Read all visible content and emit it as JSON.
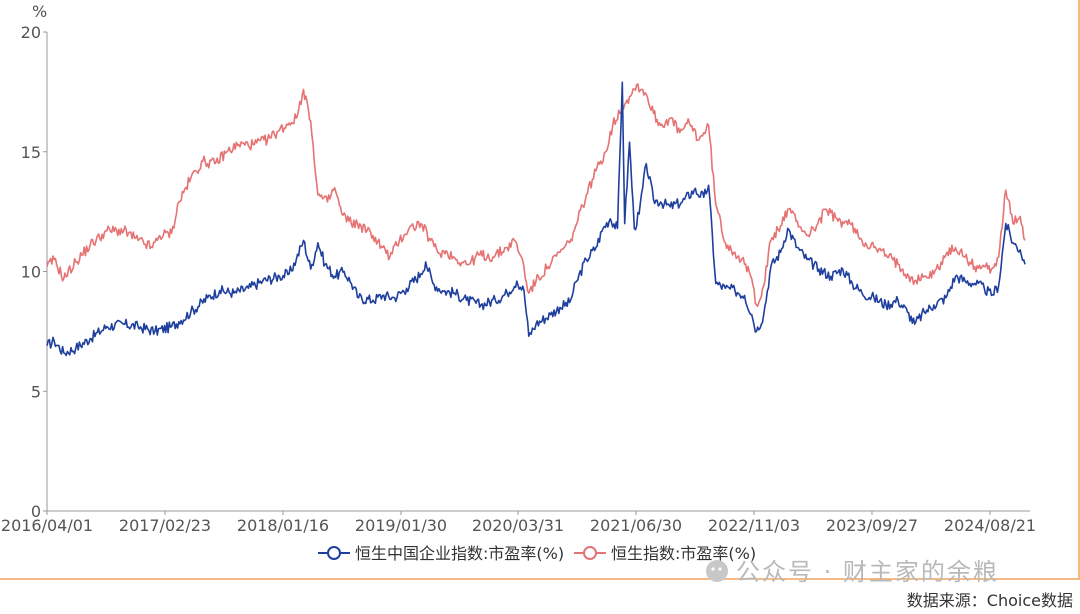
{
  "chart_data": {
    "type": "line",
    "y_unit": "%",
    "ylim": [
      0,
      20
    ],
    "y_ticks": [
      0,
      5,
      10,
      15,
      20
    ],
    "x_ticks": [
      "2016/04/01",
      "2017/02/23",
      "2018/01/16",
      "2019/01/30",
      "2020/03/31",
      "2021/06/30",
      "2022/11/03",
      "2023/09/27",
      "2024/08/21"
    ],
    "grid": false,
    "legend_position": "bottom",
    "series": [
      {
        "name": "恒生中国企业指数:市盈率(%)",
        "color": "#1f3f9e",
        "points": [
          [
            0,
            6.9
          ],
          [
            3,
            7.1
          ],
          [
            7,
            6.6
          ],
          [
            12,
            6.8
          ],
          [
            18,
            7.2
          ],
          [
            25,
            7.7
          ],
          [
            32,
            7.8
          ],
          [
            38,
            7.7
          ],
          [
            45,
            7.5
          ],
          [
            52,
            7.7
          ],
          [
            55,
            7.9
          ],
          [
            60,
            8.3
          ],
          [
            67,
            8.9
          ],
          [
            72,
            9.2
          ],
          [
            78,
            9.1
          ],
          [
            84,
            9.3
          ],
          [
            90,
            9.6
          ],
          [
            97,
            9.8
          ],
          [
            101,
            9.9
          ],
          [
            104,
            10.5
          ],
          [
            107,
            11.3
          ],
          [
            110,
            10.1
          ],
          [
            113,
            11.2
          ],
          [
            116,
            10.3
          ],
          [
            120,
            9.8
          ],
          [
            124,
            10.0
          ],
          [
            127,
            9.5
          ],
          [
            130,
            8.9
          ],
          [
            136,
            8.8
          ],
          [
            140,
            9.0
          ],
          [
            145,
            8.9
          ],
          [
            150,
            9.3
          ],
          [
            156,
            9.9
          ],
          [
            158,
            10.4
          ],
          [
            161,
            9.5
          ],
          [
            165,
            9.2
          ],
          [
            170,
            9.1
          ],
          [
            175,
            8.8
          ],
          [
            181,
            8.6
          ],
          [
            187,
            8.8
          ],
          [
            192,
            9.1
          ],
          [
            196,
            9.6
          ],
          [
            199,
            9.2
          ],
          [
            201,
            7.3
          ],
          [
            204,
            7.8
          ],
          [
            210,
            8.2
          ],
          [
            214,
            8.5
          ],
          [
            218,
            8.7
          ],
          [
            221,
            9.6
          ],
          [
            225,
            10.5
          ],
          [
            229,
            11.0
          ],
          [
            232,
            11.8
          ],
          [
            235,
            12.2
          ],
          [
            238,
            11.8
          ],
          [
            240,
            17.9
          ],
          [
            241,
            12.0
          ],
          [
            243,
            15.4
          ],
          [
            245,
            11.8
          ],
          [
            247,
            12.4
          ],
          [
            250,
            14.5
          ],
          [
            253,
            13.0
          ],
          [
            256,
            12.9
          ],
          [
            260,
            12.7
          ],
          [
            265,
            12.9
          ],
          [
            270,
            13.4
          ],
          [
            274,
            13.1
          ],
          [
            276,
            13.6
          ],
          [
            279,
            9.5
          ],
          [
            283,
            9.3
          ],
          [
            287,
            9.2
          ],
          [
            291,
            9.0
          ],
          [
            294,
            8.2
          ],
          [
            296,
            7.5
          ],
          [
            299,
            8.2
          ],
          [
            302,
            10.2
          ],
          [
            306,
            10.8
          ],
          [
            309,
            11.8
          ],
          [
            313,
            11.0
          ],
          [
            317,
            10.5
          ],
          [
            322,
            10.1
          ],
          [
            327,
            9.8
          ],
          [
            332,
            10.1
          ],
          [
            336,
            9.5
          ],
          [
            340,
            9.1
          ],
          [
            345,
            8.9
          ],
          [
            350,
            8.6
          ],
          [
            355,
            8.8
          ],
          [
            359,
            8.3
          ],
          [
            362,
            7.8
          ],
          [
            366,
            8.3
          ],
          [
            370,
            8.6
          ],
          [
            375,
            8.9
          ],
          [
            379,
            9.8
          ],
          [
            383,
            9.6
          ],
          [
            387,
            9.5
          ],
          [
            391,
            9.3
          ],
          [
            394,
            9.0
          ],
          [
            397,
            9.4
          ],
          [
            400,
            12.0
          ],
          [
            403,
            11.2
          ],
          [
            406,
            10.9
          ],
          [
            408,
            10.3
          ]
        ]
      },
      {
        "name": "恒生指数:市盈率(%)",
        "color": "#e57373",
        "points": [
          [
            0,
            10.2
          ],
          [
            3,
            10.5
          ],
          [
            7,
            9.7
          ],
          [
            12,
            10.4
          ],
          [
            18,
            11.1
          ],
          [
            25,
            11.7
          ],
          [
            32,
            11.7
          ],
          [
            38,
            11.3
          ],
          [
            44,
            11.0
          ],
          [
            47,
            11.5
          ],
          [
            52,
            11.6
          ],
          [
            55,
            12.9
          ],
          [
            60,
            13.9
          ],
          [
            65,
            14.6
          ],
          [
            70,
            14.5
          ],
          [
            75,
            15.0
          ],
          [
            80,
            15.3
          ],
          [
            86,
            15.3
          ],
          [
            92,
            15.5
          ],
          [
            97,
            15.9
          ],
          [
            101,
            16.2
          ],
          [
            104,
            16.4
          ],
          [
            107,
            17.6
          ],
          [
            109,
            16.8
          ],
          [
            111,
            15.3
          ],
          [
            113,
            13.2
          ],
          [
            117,
            12.9
          ],
          [
            120,
            13.5
          ],
          [
            123,
            12.4
          ],
          [
            126,
            12.1
          ],
          [
            131,
            11.9
          ],
          [
            136,
            11.5
          ],
          [
            140,
            11.0
          ],
          [
            143,
            10.6
          ],
          [
            147,
            11.3
          ],
          [
            151,
            11.8
          ],
          [
            156,
            12.0
          ],
          [
            160,
            11.3
          ],
          [
            163,
            10.8
          ],
          [
            167,
            10.8
          ],
          [
            171,
            10.5
          ],
          [
            176,
            10.3
          ],
          [
            180,
            10.7
          ],
          [
            186,
            10.6
          ],
          [
            192,
            11.0
          ],
          [
            195,
            11.3
          ],
          [
            198,
            10.6
          ],
          [
            201,
            9.1
          ],
          [
            204,
            9.6
          ],
          [
            209,
            10.2
          ],
          [
            214,
            10.8
          ],
          [
            218,
            11.2
          ],
          [
            221,
            12.0
          ],
          [
            225,
            13.2
          ],
          [
            229,
            14.2
          ],
          [
            233,
            15.0
          ],
          [
            236,
            16.1
          ],
          [
            240,
            16.9
          ],
          [
            243,
            17.3
          ],
          [
            246,
            17.8
          ],
          [
            250,
            17.4
          ],
          [
            253,
            16.6
          ],
          [
            256,
            16.1
          ],
          [
            260,
            16.4
          ],
          [
            264,
            15.8
          ],
          [
            268,
            16.2
          ],
          [
            272,
            15.5
          ],
          [
            276,
            16.1
          ],
          [
            279,
            12.8
          ],
          [
            283,
            11.2
          ],
          [
            287,
            10.8
          ],
          [
            291,
            10.3
          ],
          [
            294,
            9.7
          ],
          [
            296,
            8.6
          ],
          [
            299,
            9.4
          ],
          [
            302,
            11.3
          ],
          [
            306,
            11.9
          ],
          [
            309,
            12.6
          ],
          [
            313,
            12.1
          ],
          [
            317,
            11.5
          ],
          [
            321,
            11.9
          ],
          [
            325,
            12.6
          ],
          [
            330,
            12.1
          ],
          [
            335,
            12.0
          ],
          [
            340,
            11.3
          ],
          [
            345,
            11.0
          ],
          [
            350,
            10.7
          ],
          [
            355,
            10.3
          ],
          [
            359,
            9.9
          ],
          [
            362,
            9.6
          ],
          [
            366,
            9.8
          ],
          [
            370,
            9.9
          ],
          [
            375,
            10.7
          ],
          [
            379,
            11.0
          ],
          [
            383,
            10.6
          ],
          [
            387,
            10.2
          ],
          [
            391,
            10.2
          ],
          [
            394,
            10.1
          ],
          [
            397,
            10.6
          ],
          [
            400,
            13.4
          ],
          [
            403,
            12.0
          ],
          [
            406,
            12.3
          ],
          [
            408,
            11.3
          ]
        ]
      }
    ]
  },
  "watermark": "公众号 · 财主家的余粮",
  "source": "数据来源：Choice数据"
}
